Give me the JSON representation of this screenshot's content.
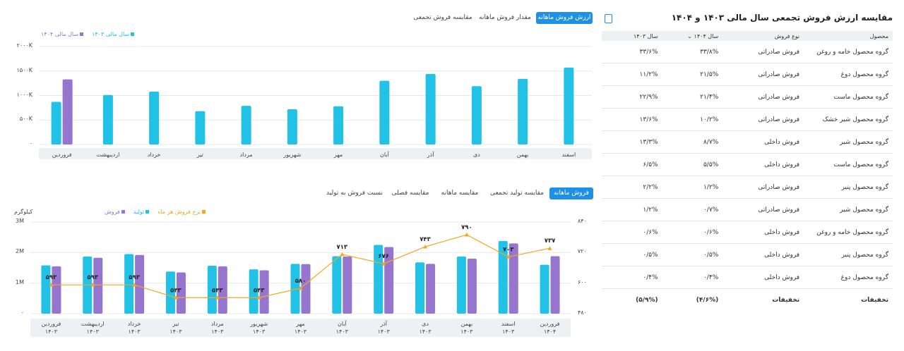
{
  "colors": {
    "accent": "#1e90e6",
    "cyan": "#22c1e6",
    "purple": "#9575cd",
    "orange": "#f5a623",
    "band": "#eef0f3"
  },
  "top": {
    "tabs": [
      {
        "label": "ارزش فروش ماهانه",
        "active": true
      },
      {
        "label": "مقدار فروش ماهانه",
        "active": false
      },
      {
        "label": "مقایسه فروش تجمعی",
        "active": false
      }
    ],
    "legend": [
      {
        "label": "سال مالی ۱۴۰۳",
        "color": "#22c1e6"
      },
      {
        "label": "سال مالی ۱۴۰۴",
        "color": "#9575cd"
      }
    ],
    "chart_data": {
      "type": "bar",
      "categories": [
        "فروردین",
        "اردیبهشت",
        "خرداد",
        "تیر",
        "مرداد",
        "شهریور",
        "مهر",
        "آبان",
        "آذر",
        "دی",
        "بهمن",
        "اسفند"
      ],
      "series": [
        {
          "name": "سال مالی ۱۴۰۳",
          "values": [
            870,
            1010,
            1080,
            680,
            790,
            720,
            780,
            1300,
            1440,
            1190,
            1340,
            1570
          ]
        },
        {
          "name": "سال مالی ۱۴۰۴",
          "values": [
            1330,
            null,
            null,
            null,
            null,
            null,
            null,
            null,
            null,
            null,
            null,
            null
          ]
        }
      ],
      "ylim": [
        0,
        2000
      ],
      "yticks": [
        0,
        500,
        1000,
        1500,
        2000
      ],
      "ytick_labels": [
        "۰",
        "۵۰۰K",
        "۱۰۰۰K",
        "۱۵۰۰K",
        "۲۰۰۰K"
      ]
    }
  },
  "bottom": {
    "tabs": [
      {
        "label": "فروش ماهانه",
        "active": true
      },
      {
        "label": "مقایسه تولید تجمعی",
        "active": false
      },
      {
        "label": "مقایسه ماهانه",
        "active": false
      },
      {
        "label": "مقایسه فصلی",
        "active": false
      },
      {
        "label": "نسبت فروش به تولید",
        "active": false
      }
    ],
    "unit_left": "کیلوگرم",
    "legend": [
      {
        "label": "نرخ فروش هر ماه",
        "color": "#f5a623"
      },
      {
        "label": "تولید",
        "color": "#22c1e6"
      },
      {
        "label": "فروش",
        "color": "#9575cd"
      }
    ],
    "chart_data": {
      "type": "bar",
      "categories": [
        "فروردین",
        "اردیبهشت",
        "خرداد",
        "تیر",
        "مرداد",
        "شهریور",
        "مهر",
        "آبان",
        "آذر",
        "دی",
        "بهمن",
        "اسفند",
        "فروردین"
      ],
      "category_years": [
        "۱۴۰۳",
        "۱۴۰۳",
        "۱۴۰۳",
        "۱۴۰۳",
        "۱۴۰۳",
        "۱۴۰۳",
        "۱۴۰۳",
        "۱۴۰۳",
        "۱۴۰۳",
        "۱۴۰۳",
        "۱۴۰۳",
        "۱۴۰۳",
        "۱۴۰۴"
      ],
      "series": [
        {
          "name": "تولید",
          "values": [
            1.58,
            1.87,
            1.95,
            1.38,
            1.57,
            1.45,
            1.63,
            1.88,
            2.25,
            1.68,
            1.87,
            2.38,
            1.6
          ]
        },
        {
          "name": "فروش",
          "values": [
            1.55,
            1.83,
            1.92,
            1.35,
            1.55,
            1.42,
            1.62,
            1.87,
            2.18,
            1.63,
            1.8,
            2.3,
            1.88
          ]
        },
        {
          "name": "نرخ فروش هر ماه",
          "values": [
            593,
            593,
            593,
            543,
            543,
            543,
            580,
            713,
            676,
            743,
            790,
            703,
            737
          ],
          "labels": [
            "۵۹۳",
            "۵۹۳",
            "۵۹۳",
            "۵۴۳",
            "۵۴۳",
            "۵۴۳",
            "۵۸۰",
            "۷۱۳",
            "۶۷۶",
            "۷۴۳",
            "۷۹۰",
            "۷۰۳",
            "۷۳۷"
          ]
        }
      ],
      "ylim_left": [
        0,
        3
      ],
      "yticks_left_labels": [
        "۰",
        "1M",
        "2M",
        "3M"
      ],
      "ylim_right": [
        480,
        840
      ],
      "yticks_right_labels": [
        "۴۸۰",
        "۶۰۰",
        "۷۲۰",
        "۸۴۰"
      ]
    }
  },
  "table": {
    "title": "مقایسه ارزش فروش تجمعی سال مالی ۱۴۰۳ و ۱۴۰۴",
    "headers": [
      "محصول",
      "نوع فروش",
      "سال ۱۴۰۴",
      "سال ۱۴۰۳"
    ],
    "rows": [
      [
        "گروه محصول خامه و روغن",
        "فروش صادراتی",
        "۳۳/۸%",
        "۳۳/۶%"
      ],
      [
        "گروه محصول دوغ",
        "فروش صادراتی",
        "۲۱/۵%",
        "۱۱/۲%"
      ],
      [
        "گروه محصول ماست",
        "فروش صادراتی",
        "۲۱/۴%",
        "۲۲/۹%"
      ],
      [
        "گروه محصول شیر خشک",
        "فروش صادراتی",
        "۱۰/۲%",
        "۱۳/۶%"
      ],
      [
        "گروه محصول شیر",
        "فروش داخلی",
        "۸/۷%",
        "۱۳/۳%"
      ],
      [
        "گروه محصول ماست",
        "فروش داخلی",
        "۵/۵%",
        "۶/۵%"
      ],
      [
        "گروه محصول پنیر",
        "فروش صادراتی",
        "۱/۲%",
        "۲/۲%"
      ],
      [
        "گروه محصول شیر",
        "فروش صادراتی",
        "۰/۷%",
        "۱/۲%"
      ],
      [
        "گروه محصول خامه و روغن",
        "فروش داخلی",
        "۰/۶%",
        "۰/۶%"
      ],
      [
        "گروه محصول پنیر",
        "فروش داخلی",
        "۰/۵%",
        "۰/۵%"
      ],
      [
        "گروه محصول دوغ",
        "فروش داخلی",
        "۰/۴%",
        "۰/۴%"
      ],
      [
        "تخفیفات",
        "تخفیفات",
        "(۴/۶%)",
        "(۵/۹%)"
      ]
    ]
  }
}
